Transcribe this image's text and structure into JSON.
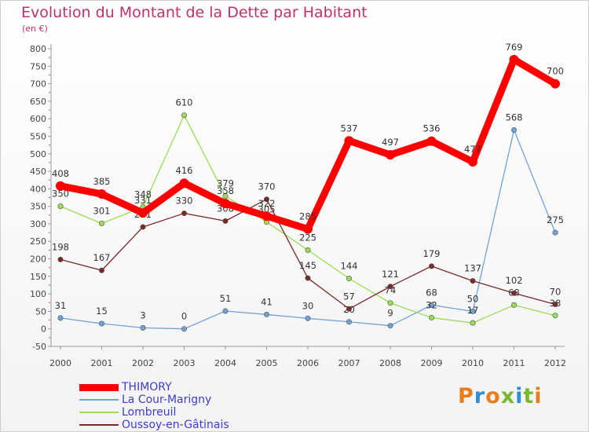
{
  "chart_data": {
    "type": "line",
    "title": "Evolution du Montant de la Dette par Habitant",
    "subtitle": "(en €)",
    "x": [
      "2000",
      "2001",
      "2002",
      "2003",
      "2004",
      "2005",
      "2006",
      "2007",
      "2008",
      "2009",
      "2010",
      "2011",
      "2012"
    ],
    "ylim": [
      -50,
      800
    ],
    "yticks": [
      -50,
      0,
      50,
      100,
      150,
      200,
      250,
      300,
      350,
      400,
      450,
      500,
      550,
      600,
      650,
      700,
      750,
      800
    ],
    "grid": false,
    "legend_position": "bottom-left",
    "series": [
      {
        "name": "THIMORY",
        "color": "#ff0000",
        "values": [
          408,
          385,
          331,
          416,
          358,
          322,
          285,
          537,
          497,
          536,
          477,
          769,
          700
        ]
      },
      {
        "name": "La Cour-Marigny",
        "color": "#6fa3d8",
        "values": [
          31,
          15,
          3,
          0,
          51,
          41,
          30,
          20,
          9,
          68,
          50,
          568,
          275
        ]
      },
      {
        "name": "Lombreuil",
        "color": "#99dd55",
        "values": [
          350,
          301,
          348,
          610,
          379,
          305,
          225,
          144,
          74,
          32,
          17,
          68,
          38
        ]
      },
      {
        "name": "Oussoy-en-Gâtinais",
        "color": "#7a2a2a",
        "values": [
          198,
          167,
          291,
          330,
          308,
          370,
          145,
          57,
          121,
          179,
          137,
          102,
          70
        ]
      }
    ]
  },
  "logo": {
    "text": "Proxiti",
    "letters": [
      "P",
      "r",
      "o",
      "x",
      "i",
      "t",
      "i"
    ],
    "colors": [
      "#e87d1e",
      "#2b8fd6",
      "#e87d1e",
      "#7ab82b",
      "#2b8fd6",
      "#7ab82b",
      "#e87d1e"
    ]
  }
}
